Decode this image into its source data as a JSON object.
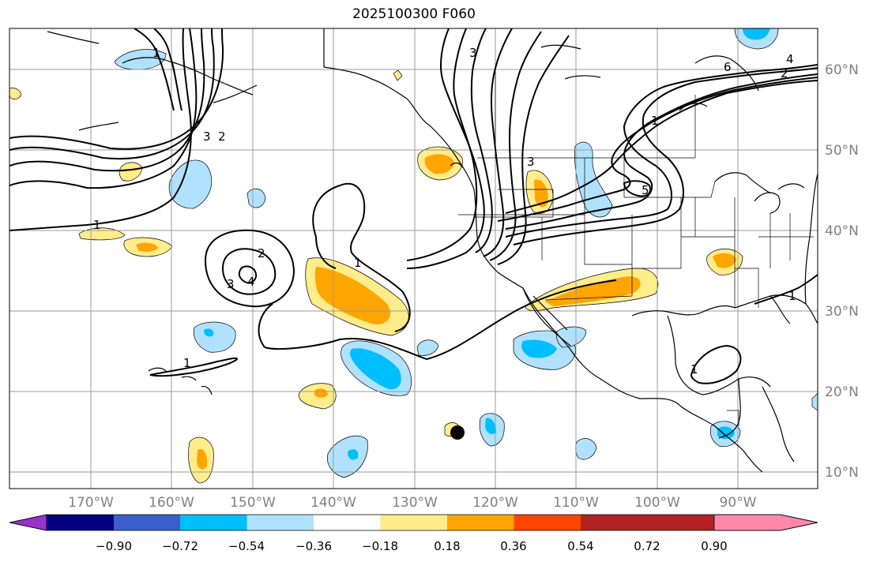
{
  "title": "2025100300 F060",
  "axes": {
    "lon_labels": [
      "170°W",
      "160°W",
      "150°W",
      "140°W",
      "130°W",
      "120°W",
      "110°W",
      "100°W",
      "90°W"
    ],
    "lat_labels": [
      "10°N",
      "20°N",
      "30°N",
      "40°N",
      "50°N",
      "60°N"
    ]
  },
  "colorbar": {
    "colors": [
      "#9932cc",
      "#000080",
      "#3a5fcd",
      "#00bfff",
      "#b0e2ff",
      "#ffffff",
      "#ffec8b",
      "#ffa500",
      "#ff4500",
      "#b22222",
      "#ff88aa"
    ],
    "tick_labels": [
      "−0.90",
      "−0.72",
      "−0.54",
      "−0.36",
      "−0.18",
      "0.18",
      "0.36",
      "0.54",
      "0.72",
      "0.90"
    ]
  },
  "contour_labels": [
    "1",
    "1",
    "1",
    "1",
    "1",
    "1",
    "2",
    "2",
    "2",
    "3",
    "3",
    "3",
    "3",
    "4",
    "4",
    "5",
    "6",
    "1"
  ],
  "colors": {
    "grid": "#9a9a9a",
    "axis_text": "#808080",
    "contour": "#000000",
    "coast": "#000000"
  }
}
